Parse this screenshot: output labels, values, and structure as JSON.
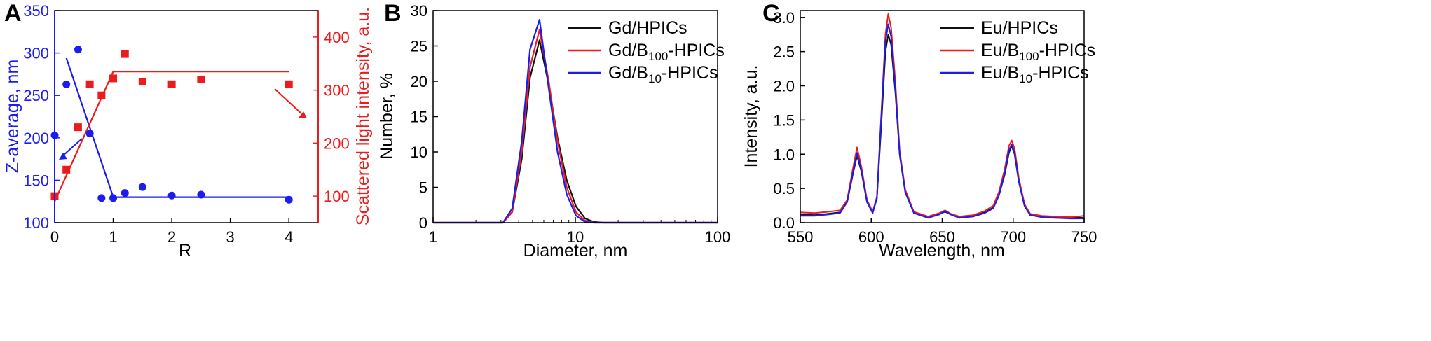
{
  "colors": {
    "blue": "#1c1cf0",
    "red": "#ec1c1c",
    "black": "#111111"
  },
  "chart_data": [
    {
      "type": "scatter",
      "panel": "A",
      "xlabel": "R",
      "ylabel_left": "Z-average, nm",
      "ylabel_right": "Scattered light intensity, a.u.",
      "xlim": [
        0,
        4.5
      ],
      "ylim_left": [
        100,
        350
      ],
      "ylim_right": [
        50,
        450
      ],
      "xticks": [
        "0",
        "1",
        "2",
        "3",
        "4"
      ],
      "yticks_left": [
        "100",
        "150",
        "200",
        "250",
        "300",
        "350"
      ],
      "yticks_right": [
        "100",
        "200",
        "300",
        "400"
      ],
      "series": [
        {
          "axis": "left",
          "color": "#1c1cf0",
          "marker": "circle",
          "x": [
            0,
            0.2,
            0.4,
            0.6,
            0.8,
            1.0,
            1.2,
            1.5,
            2.0,
            2.5,
            4.0
          ],
          "y": [
            203,
            263,
            304,
            205,
            129,
            129,
            135,
            142,
            132,
            133,
            127
          ]
        },
        {
          "axis": "right",
          "color": "#ec1c1c",
          "marker": "square",
          "x": [
            0,
            0.2,
            0.4,
            0.6,
            0.8,
            1.0,
            1.2,
            1.5,
            2.0,
            2.5,
            4.0
          ],
          "y": [
            100,
            150,
            230,
            311,
            290,
            322,
            368,
            316,
            311,
            320,
            311
          ]
        }
      ],
      "fit_lines": [
        {
          "axis": "left",
          "color": "#1c1cf0",
          "points": [
            [
              0.2,
              294
            ],
            [
              1.0,
              130
            ],
            [
              4.0,
              130
            ]
          ]
        },
        {
          "axis": "right",
          "color": "#ec1c1c",
          "points": [
            [
              0,
              90
            ],
            [
              1.0,
              335
            ],
            [
              4.0,
              335
            ]
          ]
        }
      ]
    },
    {
      "type": "line",
      "panel": "B",
      "xlabel": "Diameter, nm",
      "ylabel": "Number, %",
      "xscale": "log",
      "xlim": [
        1,
        100
      ],
      "ylim": [
        0,
        30
      ],
      "xticks": [
        "1",
        "10",
        "100"
      ],
      "yticks": [
        "0",
        "5",
        "10",
        "15",
        "20",
        "25",
        "30"
      ],
      "series": [
        {
          "name": "Gd/HPICs",
          "color": "#111111",
          "x": [
            1,
            3.1,
            3.6,
            4.2,
            4.8,
            5.6,
            6.5,
            7.5,
            8.7,
            10.1,
            11.7,
            13.5,
            15.7,
            18.2,
            100
          ],
          "y": [
            0,
            0,
            1.5,
            9,
            20.5,
            25.8,
            19.5,
            12,
            6,
            2.3,
            0.6,
            0.1,
            0,
            0,
            0
          ]
        },
        {
          "name": "Gd/B100-HPICs",
          "color": "#ec1c1c",
          "x": [
            1,
            3.1,
            3.6,
            4.2,
            4.8,
            5.6,
            6.5,
            7.5,
            8.7,
            10.1,
            11.7,
            13.5,
            15.7,
            18.2,
            100
          ],
          "y": [
            0,
            0,
            1.5,
            10,
            22,
            27.3,
            20,
            11.5,
            5,
            1.5,
            0.3,
            0,
            0,
            0,
            0
          ]
        },
        {
          "name": "Gd/B10-HPICs",
          "color": "#1c1cf0",
          "x": [
            1,
            3.1,
            3.6,
            4.2,
            4.8,
            5.6,
            6.5,
            7.5,
            8.7,
            10.1,
            11.7,
            13.5,
            15.7,
            18.2,
            100
          ],
          "y": [
            0,
            0,
            2,
            11.5,
            24.5,
            28.7,
            19,
            10,
            4,
            1,
            0.1,
            0,
            0,
            0,
            0
          ]
        }
      ]
    },
    {
      "type": "line",
      "panel": "C",
      "xlabel": "Wavelength, nm",
      "ylabel": "Intensity, a.u.",
      "xlim": [
        550,
        750
      ],
      "ylim": [
        0,
        3.1
      ],
      "xticks": [
        "550",
        "600",
        "650",
        "700",
        "750"
      ],
      "yticks": [
        "0.0",
        "0.5",
        "1.0",
        "1.5",
        "2.0",
        "2.5",
        "3.0"
      ],
      "series": [
        {
          "name": "Eu/HPICs",
          "color": "#111111",
          "x": [
            550,
            560,
            570,
            578,
            583,
            587,
            590,
            593,
            597,
            601,
            604,
            607,
            610,
            612,
            614,
            617,
            620,
            624,
            630,
            640,
            648,
            652,
            656,
            662,
            672,
            680,
            686,
            690,
            694,
            697,
            699,
            701,
            704,
            708,
            712,
            720,
            730,
            740,
            750
          ],
          "y": [
            0.12,
            0.11,
            0.13,
            0.15,
            0.3,
            0.7,
            0.98,
            0.75,
            0.3,
            0.15,
            0.35,
            1.4,
            2.5,
            2.75,
            2.6,
            1.9,
            1.0,
            0.45,
            0.15,
            0.08,
            0.13,
            0.16,
            0.12,
            0.08,
            0.1,
            0.15,
            0.22,
            0.4,
            0.7,
            1.02,
            1.12,
            1.0,
            0.6,
            0.25,
            0.12,
            0.09,
            0.08,
            0.08,
            0.07
          ]
        },
        {
          "name": "Eu/B100-HPICs",
          "color": "#ec1c1c",
          "x": [
            550,
            560,
            570,
            578,
            583,
            587,
            590,
            593,
            597,
            601,
            604,
            607,
            610,
            612,
            614,
            617,
            620,
            624,
            630,
            640,
            648,
            652,
            656,
            662,
            672,
            680,
            686,
            690,
            694,
            697,
            699,
            701,
            704,
            708,
            712,
            720,
            730,
            740,
            750
          ],
          "y": [
            0.15,
            0.14,
            0.16,
            0.18,
            0.33,
            0.78,
            1.1,
            0.82,
            0.33,
            0.16,
            0.38,
            1.55,
            2.75,
            3.05,
            2.85,
            2.05,
            1.05,
            0.48,
            0.16,
            0.09,
            0.14,
            0.18,
            0.13,
            0.09,
            0.11,
            0.17,
            0.25,
            0.45,
            0.78,
            1.12,
            1.2,
            1.08,
            0.65,
            0.27,
            0.13,
            0.1,
            0.09,
            0.08,
            0.1
          ]
        },
        {
          "name": "Eu/B10-HPICs",
          "color": "#1c1cf0",
          "x": [
            550,
            560,
            570,
            578,
            583,
            587,
            590,
            593,
            597,
            601,
            604,
            607,
            610,
            612,
            614,
            617,
            620,
            624,
            630,
            640,
            648,
            652,
            656,
            662,
            672,
            680,
            686,
            690,
            694,
            697,
            699,
            701,
            704,
            708,
            712,
            720,
            730,
            740,
            750
          ],
          "y": [
            0.1,
            0.1,
            0.12,
            0.14,
            0.3,
            0.72,
            1.02,
            0.77,
            0.3,
            0.14,
            0.36,
            1.5,
            2.65,
            2.9,
            2.72,
            1.95,
            1.0,
            0.44,
            0.14,
            0.07,
            0.12,
            0.17,
            0.12,
            0.07,
            0.09,
            0.14,
            0.21,
            0.4,
            0.72,
            1.06,
            1.14,
            1.02,
            0.6,
            0.24,
            0.11,
            0.08,
            0.07,
            0.06,
            0.06
          ]
        }
      ]
    }
  ]
}
